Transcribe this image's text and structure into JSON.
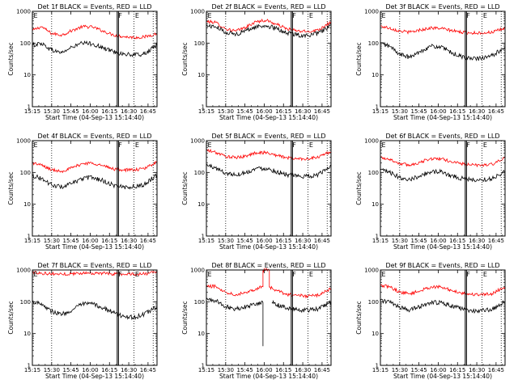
{
  "figure": {
    "background": "#ffffff",
    "axis_color": "#000000"
  },
  "chart_data": [
    {
      "id": "det1",
      "type": "line",
      "title": "Det 1f BLACK = Events, RED = LLD",
      "xlabel": "Start Time (04-Sep-13 15:14:40)",
      "ylabel": "Counts/sec",
      "yscale": "log",
      "ylim": [
        1,
        1000
      ],
      "ytick_labels": [
        "1",
        "10",
        "100",
        "1000"
      ],
      "xlim": [
        "15:15",
        "16:52"
      ],
      "xtick_labels": [
        "15:15",
        "15:30",
        "15:45",
        "16:00",
        "16:15",
        "16:30",
        "16:45"
      ],
      "dotted_vlines": [
        "15:30",
        "16:34",
        "16:49"
      ],
      "solid_vlines": [
        "16:21",
        "16:22"
      ],
      "markers": [
        {
          "text": "E",
          "at": "15:15"
        },
        {
          "text": "F",
          "at": "16:21"
        },
        {
          "text": "E",
          "at": "16:34"
        }
      ],
      "series": [
        {
          "color": "#ff0000",
          "x": [
            "15:15",
            "15:22",
            "15:30",
            "15:38",
            "15:46",
            "15:54",
            "16:02",
            "16:10",
            "16:18",
            "16:26",
            "16:34",
            "16:42",
            "16:52"
          ],
          "y": [
            250,
            330,
            200,
            180,
            250,
            330,
            320,
            240,
            180,
            160,
            150,
            155,
            200
          ]
        },
        {
          "color": "#000000",
          "x": [
            "15:15",
            "15:22",
            "15:30",
            "15:38",
            "15:46",
            "15:54",
            "16:02",
            "16:10",
            "16:18",
            "16:26",
            "16:34",
            "16:42",
            "16:52"
          ],
          "y": [
            85,
            100,
            60,
            50,
            75,
            100,
            95,
            70,
            55,
            45,
            42,
            45,
            85
          ]
        }
      ]
    },
    {
      "id": "det2",
      "type": "line",
      "title": "Det 2f BLACK = Events, RED = LLD",
      "xlabel": "Start Time (04-Sep-13 15:14:40)",
      "ylabel": "Counts/sec",
      "yscale": "log",
      "ylim": [
        1,
        1000
      ],
      "ytick_labels": [
        "1",
        "10",
        "100",
        "1000"
      ],
      "xlim": [
        "15:15",
        "16:52"
      ],
      "xtick_labels": [
        "15:15",
        "15:30",
        "15:45",
        "16:00",
        "16:15",
        "16:30",
        "16:45"
      ],
      "dotted_vlines": [
        "15:30",
        "16:34",
        "16:49"
      ],
      "solid_vlines": [
        "16:21",
        "16:22"
      ],
      "markers": [
        {
          "text": "E",
          "at": "15:15"
        },
        {
          "text": "F",
          "at": "16:21"
        },
        {
          "text": "E",
          "at": "16:34"
        }
      ],
      "series": [
        {
          "color": "#ff0000",
          "x": [
            "15:15",
            "15:22",
            "15:30",
            "15:38",
            "15:46",
            "15:54",
            "16:02",
            "16:10",
            "16:18",
            "16:26",
            "16:34",
            "16:42",
            "16:52"
          ],
          "y": [
            480,
            450,
            280,
            240,
            320,
            480,
            520,
            380,
            280,
            240,
            230,
            260,
            470
          ]
        },
        {
          "color": "#000000",
          "x": [
            "15:15",
            "15:22",
            "15:30",
            "15:38",
            "15:46",
            "15:54",
            "16:02",
            "16:10",
            "16:18",
            "16:26",
            "16:34",
            "16:42",
            "16:52"
          ],
          "y": [
            350,
            330,
            220,
            190,
            250,
            330,
            350,
            280,
            210,
            180,
            175,
            200,
            360
          ]
        }
      ]
    },
    {
      "id": "det3",
      "type": "line",
      "title": "Det 3f BLACK = Events, RED = LLD",
      "xlabel": "Start Time (04-Sep-13 15:14:40)",
      "ylabel": "Counts/sec",
      "yscale": "log",
      "ylim": [
        1,
        1000
      ],
      "ytick_labels": [
        "1",
        "10",
        "100",
        "1000"
      ],
      "xlim": [
        "15:15",
        "16:52"
      ],
      "xtick_labels": [
        "15:15",
        "15:30",
        "15:45",
        "16:00",
        "16:15",
        "16:30",
        "16:45"
      ],
      "dotted_vlines": [
        "15:30",
        "16:34",
        "16:49"
      ],
      "solid_vlines": [
        "16:21",
        "16:22"
      ],
      "markers": [
        {
          "text": "E",
          "at": "15:15"
        },
        {
          "text": "F",
          "at": "16:21"
        },
        {
          "text": "E",
          "at": "16:34"
        }
      ],
      "series": [
        {
          "color": "#ff0000",
          "x": [
            "15:15",
            "15:22",
            "15:30",
            "15:38",
            "15:46",
            "15:54",
            "16:02",
            "16:10",
            "16:18",
            "16:26",
            "16:34",
            "16:42",
            "16:52"
          ],
          "y": [
            340,
            300,
            240,
            220,
            260,
            300,
            290,
            250,
            220,
            210,
            210,
            220,
            290
          ]
        },
        {
          "color": "#000000",
          "x": [
            "15:15",
            "15:22",
            "15:30",
            "15:38",
            "15:46",
            "15:54",
            "16:02",
            "16:10",
            "16:18",
            "16:26",
            "16:34",
            "16:42",
            "16:52"
          ],
          "y": [
            100,
            80,
            45,
            35,
            55,
            80,
            75,
            50,
            38,
            32,
            33,
            40,
            75
          ]
        }
      ]
    },
    {
      "id": "det4",
      "type": "line",
      "title": "Det 4f BLACK = Events, RED = LLD",
      "xlabel": "Start Time (04-Sep-13 15:14:40)",
      "ylabel": "Counts/sec",
      "yscale": "log",
      "ylim": [
        1,
        1000
      ],
      "ytick_labels": [
        "1",
        "10",
        "100",
        "1000"
      ],
      "xlim": [
        "15:15",
        "16:52"
      ],
      "xtick_labels": [
        "15:15",
        "15:30",
        "15:45",
        "16:00",
        "16:15",
        "16:30",
        "16:45"
      ],
      "dotted_vlines": [
        "15:30",
        "16:34",
        "16:49"
      ],
      "solid_vlines": [
        "16:21",
        "16:22"
      ],
      "markers": [
        {
          "text": "E",
          "at": "15:15"
        },
        {
          "text": "F",
          "at": "16:21"
        },
        {
          "text": "E",
          "at": "16:34"
        }
      ],
      "series": [
        {
          "color": "#ff0000",
          "x": [
            "15:15",
            "15:22",
            "15:30",
            "15:38",
            "15:46",
            "15:54",
            "16:02",
            "16:10",
            "16:18",
            "16:26",
            "16:34",
            "16:42",
            "16:52"
          ],
          "y": [
            200,
            170,
            120,
            110,
            140,
            190,
            200,
            160,
            130,
            120,
            120,
            130,
            220
          ]
        },
        {
          "color": "#000000",
          "x": [
            "15:15",
            "15:22",
            "15:30",
            "15:38",
            "15:46",
            "15:54",
            "16:02",
            "16:10",
            "16:18",
            "16:26",
            "16:34",
            "16:42",
            "16:52"
          ],
          "y": [
            80,
            65,
            40,
            35,
            45,
            65,
            70,
            55,
            40,
            35,
            35,
            42,
            85
          ]
        }
      ]
    },
    {
      "id": "det5",
      "type": "line",
      "title": "Det 5f BLACK = Events, RED = LLD",
      "xlabel": "Start Time (04-Sep-13 15:14:40)",
      "ylabel": "Counts/sec",
      "yscale": "log",
      "ylim": [
        1,
        1000
      ],
      "ytick_labels": [
        "1",
        "10",
        "100",
        "1000"
      ],
      "xlim": [
        "15:15",
        "16:52"
      ],
      "xtick_labels": [
        "15:15",
        "15:30",
        "15:45",
        "16:00",
        "16:15",
        "16:30",
        "16:45"
      ],
      "dotted_vlines": [
        "15:30",
        "16:34",
        "16:49"
      ],
      "solid_vlines": [
        "16:21",
        "16:22"
      ],
      "markers": [
        {
          "text": "E",
          "at": "15:15"
        },
        {
          "text": "F",
          "at": "16:21"
        },
        {
          "text": "E",
          "at": "16:34"
        }
      ],
      "series": [
        {
          "color": "#ff0000",
          "x": [
            "15:15",
            "15:22",
            "15:30",
            "15:38",
            "15:46",
            "15:54",
            "16:02",
            "16:10",
            "16:18",
            "16:26",
            "16:34",
            "16:42",
            "16:52"
          ],
          "y": [
            500,
            430,
            320,
            290,
            330,
            420,
            420,
            340,
            290,
            270,
            270,
            300,
            460
          ]
        },
        {
          "color": "#000000",
          "x": [
            "15:15",
            "15:22",
            "15:30",
            "15:38",
            "15:46",
            "15:54",
            "16:02",
            "16:10",
            "16:18",
            "16:26",
            "16:34",
            "16:42",
            "16:52"
          ],
          "y": [
            170,
            140,
            95,
            85,
            100,
            135,
            135,
            105,
            85,
            75,
            75,
            85,
            160
          ]
        }
      ]
    },
    {
      "id": "det6",
      "type": "line",
      "title": "Det 6f BLACK = Events, RED = LLD",
      "xlabel": "Start Time (04-Sep-13 15:14:40)",
      "ylabel": "Counts/sec",
      "yscale": "log",
      "ylim": [
        1,
        1000
      ],
      "ytick_labels": [
        "1",
        "10",
        "100",
        "1000"
      ],
      "xlim": [
        "15:15",
        "16:52"
      ],
      "xtick_labels": [
        "15:15",
        "15:30",
        "15:45",
        "16:00",
        "16:15",
        "16:30",
        "16:45"
      ],
      "dotted_vlines": [
        "15:30",
        "16:34",
        "16:49"
      ],
      "solid_vlines": [
        "16:21",
        "16:22"
      ],
      "markers": [
        {
          "text": "E",
          "at": "15:15"
        },
        {
          "text": "F",
          "at": "16:21"
        },
        {
          "text": "E",
          "at": "16:34"
        }
      ],
      "series": [
        {
          "color": "#ff0000",
          "x": [
            "15:15",
            "15:22",
            "15:30",
            "15:38",
            "15:46",
            "15:54",
            "16:02",
            "16:10",
            "16:18",
            "16:26",
            "16:34",
            "16:42",
            "16:52"
          ],
          "y": [
            300,
            260,
            190,
            170,
            210,
            270,
            270,
            220,
            190,
            170,
            170,
            180,
            280
          ]
        },
        {
          "color": "#000000",
          "x": [
            "15:15",
            "15:22",
            "15:30",
            "15:38",
            "15:46",
            "15:54",
            "16:02",
            "16:10",
            "16:18",
            "16:26",
            "16:34",
            "16:42",
            "16:52"
          ],
          "y": [
            120,
            100,
            70,
            60,
            80,
            105,
            105,
            80,
            65,
            58,
            58,
            65,
            110
          ]
        }
      ]
    },
    {
      "id": "det7",
      "type": "line",
      "title": "Det 7f BLACK = Events, RED = LLD",
      "xlabel": "Start Time (04-Sep-13 15:14:40)",
      "ylabel": "Counts/sec",
      "yscale": "log",
      "ylim": [
        1,
        1000
      ],
      "ytick_labels": [
        "1",
        "10",
        "100",
        "1000"
      ],
      "xlim": [
        "15:15",
        "16:52"
      ],
      "xtick_labels": [
        "15:15",
        "15:30",
        "15:45",
        "16:00",
        "16:15",
        "16:30",
        "16:45"
      ],
      "dotted_vlines": [
        "15:30",
        "16:34",
        "16:49"
      ],
      "solid_vlines": [
        "16:21",
        "16:22"
      ],
      "markers": [
        {
          "text": "E",
          "at": "15:15"
        },
        {
          "text": "F",
          "at": "16:21"
        },
        {
          "text": "E",
          "at": "16:34"
        }
      ],
      "series": [
        {
          "color": "#ff0000",
          "x": [
            "15:15",
            "15:22",
            "15:30",
            "15:38",
            "15:46",
            "15:54",
            "16:02",
            "16:10",
            "16:18",
            "16:26",
            "16:34",
            "16:42",
            "16:52"
          ],
          "y": [
            850,
            800,
            760,
            740,
            760,
            800,
            800,
            780,
            760,
            740,
            740,
            760,
            850
          ]
        },
        {
          "color": "#000000",
          "x": [
            "15:15",
            "15:22",
            "15:30",
            "15:38",
            "15:46",
            "15:54",
            "16:02",
            "16:10",
            "16:18",
            "16:26",
            "16:34",
            "16:42",
            "16:52"
          ],
          "y": [
            100,
            90,
            50,
            40,
            55,
            85,
            85,
            65,
            45,
            35,
            32,
            40,
            70
          ]
        }
      ]
    },
    {
      "id": "det8",
      "type": "line",
      "title": "Det 8f BLACK = Events, RED = LLD",
      "xlabel": "Start Time (04-Sep-13 15:14:40)",
      "ylabel": "Counts/sec",
      "yscale": "log",
      "ylim": [
        1,
        1000
      ],
      "ytick_labels": [
        "1",
        "10",
        "100",
        "1000"
      ],
      "xlim": [
        "15:15",
        "16:52"
      ],
      "xtick_labels": [
        "15:15",
        "15:30",
        "15:45",
        "16:00",
        "16:15",
        "16:30",
        "16:45"
      ],
      "dotted_vlines": [
        "15:30",
        "16:34",
        "16:49"
      ],
      "solid_vlines": [
        "16:21",
        "16:22"
      ],
      "markers": [
        {
          "text": "E",
          "at": "15:15"
        },
        {
          "text": "F",
          "at": "16:21"
        },
        {
          "text": "E",
          "at": "16:34"
        }
      ],
      "series": [
        {
          "color": "#ff0000",
          "x": [
            "15:15",
            "15:22",
            "15:30",
            "15:38",
            "15:46",
            "15:54",
            "15:59",
            "15:59",
            "16:04",
            "16:04",
            "16:10",
            "16:18",
            "16:26",
            "16:34",
            "16:42",
            "16:52"
          ],
          "y": [
            300,
            310,
            200,
            170,
            200,
            260,
            300,
            1000,
            1000,
            290,
            220,
            170,
            160,
            150,
            160,
            260
          ]
        },
        {
          "color": "#000000",
          "x": [
            "15:15",
            "15:22",
            "15:30",
            "15:38",
            "15:46",
            "15:54",
            "15:59",
            "15:59",
            "15:59",
            "16:06",
            "16:10",
            "16:18",
            "16:26",
            "16:34",
            "16:42",
            "16:52"
          ],
          "y": [
            120,
            110,
            70,
            60,
            70,
            90,
            95,
            4,
            null,
            95,
            80,
            65,
            55,
            55,
            60,
            100
          ]
        }
      ]
    },
    {
      "id": "det9",
      "type": "line",
      "title": "Det 9f BLACK = Events, RED = LLD",
      "xlabel": "Start Time (04-Sep-13 15:14:40)",
      "ylabel": "Counts/sec",
      "yscale": "log",
      "ylim": [
        1,
        1000
      ],
      "ytick_labels": [
        "1",
        "10",
        "100",
        "1000"
      ],
      "xlim": [
        "15:15",
        "16:52"
      ],
      "xtick_labels": [
        "15:15",
        "15:30",
        "15:45",
        "16:00",
        "16:15",
        "16:30",
        "16:45"
      ],
      "dotted_vlines": [
        "15:30",
        "16:34",
        "16:49"
      ],
      "solid_vlines": [
        "16:21",
        "16:22"
      ],
      "markers": [
        {
          "text": "E",
          "at": "15:15"
        },
        {
          "text": "F",
          "at": "16:21"
        },
        {
          "text": "E",
          "at": "16:34"
        }
      ],
      "series": [
        {
          "color": "#ff0000",
          "x": [
            "15:15",
            "15:22",
            "15:30",
            "15:38",
            "15:46",
            "15:54",
            "16:02",
            "16:10",
            "16:18",
            "16:26",
            "16:34",
            "16:42",
            "16:52"
          ],
          "y": [
            320,
            300,
            200,
            180,
            220,
            290,
            290,
            230,
            190,
            170,
            170,
            180,
            300
          ]
        },
        {
          "color": "#000000",
          "x": [
            "15:15",
            "15:22",
            "15:30",
            "15:38",
            "15:46",
            "15:54",
            "16:02",
            "16:10",
            "16:18",
            "16:26",
            "16:34",
            "16:42",
            "16:52"
          ],
          "y": [
            110,
            100,
            65,
            55,
            70,
            95,
            95,
            75,
            60,
            52,
            52,
            58,
            100
          ]
        }
      ]
    }
  ]
}
